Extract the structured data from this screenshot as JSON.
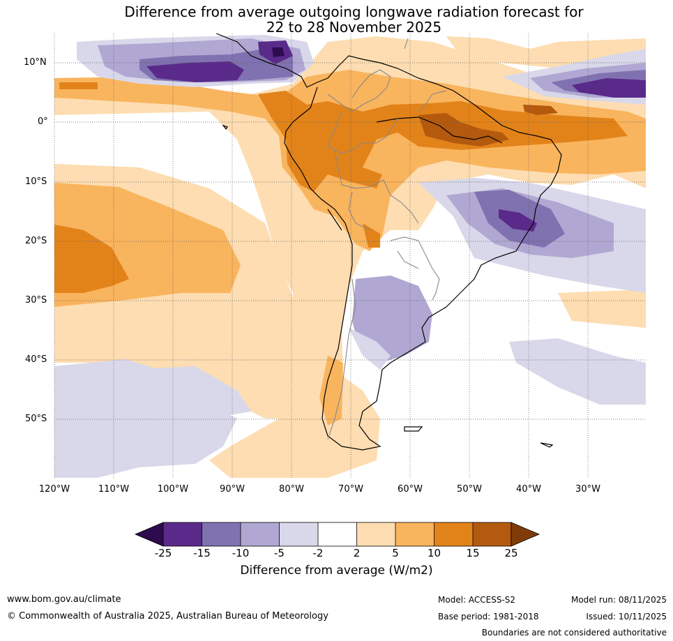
{
  "title": {
    "line1": "Difference from average outgoing longwave radiation forecast for",
    "line2": "22 to 28 November 2025"
  },
  "map": {
    "lat_labels": [
      "10°N",
      "0°",
      "10°S",
      "20°S",
      "30°S",
      "40°S",
      "50°S"
    ],
    "lon_labels": [
      "120°W",
      "110°W",
      "100°W",
      "90°W",
      "80°W",
      "70°W",
      "60°W",
      "50°W",
      "40°W",
      "30°W"
    ]
  },
  "colorbar": {
    "ticks": [
      "-25",
      "-15",
      "-10",
      "-5",
      "-2",
      "2",
      "5",
      "10",
      "15",
      "25"
    ],
    "colors": [
      "#2d0b4e",
      "#5a2a8a",
      "#8072b0",
      "#b0a8d2",
      "#d9d8ea",
      "#ffffff",
      "#fdddb1",
      "#f9b45e",
      "#e2831a",
      "#b45a0e",
      "#7f3b08"
    ],
    "title": "Difference from average (W/m2)"
  },
  "footer": {
    "url": "www.bom.gov.au/climate",
    "copyright": "© Commonwealth of Australia 2025, Australian Bureau of Meteorology",
    "model": "Model: ACCESS-S2",
    "base_period": "Base period: 1981-2018",
    "model_run": "Model run: 08/11/2025",
    "issued": "Issued: 10/11/2025",
    "disclaimer": "Boundaries are not considered authoritative"
  }
}
